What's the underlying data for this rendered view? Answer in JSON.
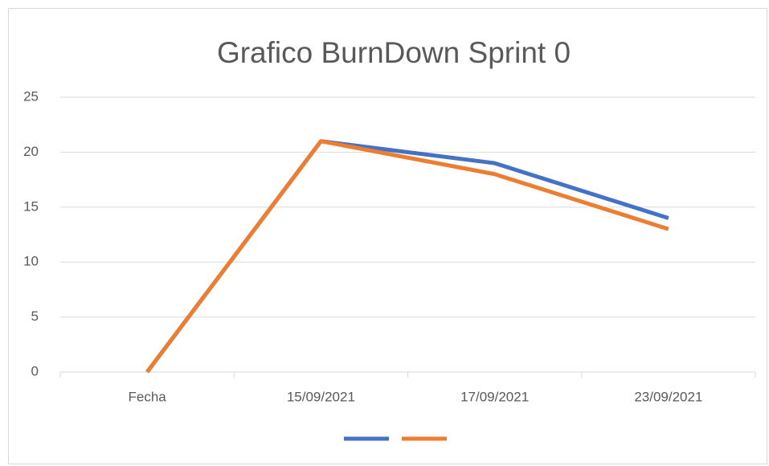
{
  "chart_data": {
    "type": "line",
    "title": "Grafico BurnDown Sprint 0",
    "categories": [
      "Fecha",
      "15/09/2021",
      "17/09/2021",
      "23/09/2021"
    ],
    "series": [
      {
        "color": "#4472c4",
        "values": [
          0,
          21,
          19,
          14
        ]
      },
      {
        "color": "#ed7d31",
        "values": [
          0,
          21,
          18,
          13
        ]
      }
    ],
    "ylim": [
      0,
      25
    ],
    "yticks": [
      0,
      5,
      10,
      15,
      20,
      25
    ],
    "grid": true,
    "legend": "bottom"
  }
}
